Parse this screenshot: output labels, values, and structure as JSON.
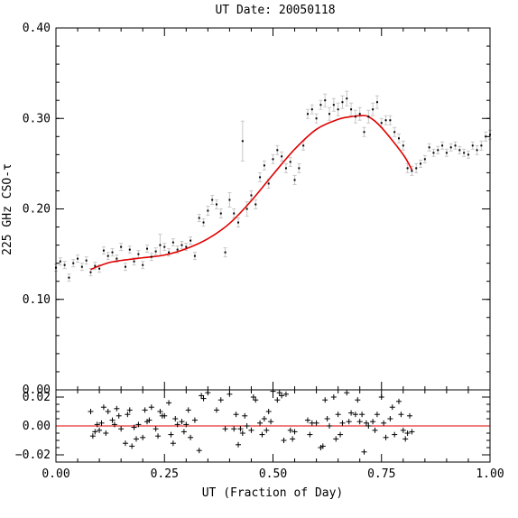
{
  "chart_data": [
    {
      "type": "scatter",
      "title": "UT Date: 20050118",
      "xlabel": "",
      "ylabel": "225 GHz CSO-τ",
      "xlim": [
        0.0,
        1.0
      ],
      "ylim": [
        0.0,
        0.4
      ],
      "yticks": [
        0.0,
        0.1,
        0.2,
        0.3,
        0.4
      ],
      "ytick_labels": [
        "0.00",
        "0.10",
        "0.20",
        "0.30",
        "0.40"
      ],
      "colors": {
        "points": "#000000",
        "error_bars": "#c8c8c8",
        "fit": "#e00000"
      },
      "series": [
        {
          "kind": "measurements",
          "x": [
            0.0,
            0.01,
            0.02,
            0.03,
            0.04,
            0.05,
            0.06,
            0.07,
            0.08,
            0.09,
            0.1,
            0.11,
            0.12,
            0.13,
            0.14,
            0.15,
            0.16,
            0.17,
            0.18,
            0.19,
            0.2,
            0.21,
            0.22,
            0.23,
            0.24,
            0.25,
            0.26,
            0.27,
            0.28,
            0.29,
            0.3,
            0.31,
            0.32,
            0.33,
            0.34,
            0.35,
            0.36,
            0.37,
            0.38,
            0.39,
            0.4,
            0.41,
            0.42,
            0.43,
            0.44,
            0.45,
            0.46,
            0.47,
            0.48,
            0.49,
            0.5,
            0.51,
            0.52,
            0.53,
            0.54,
            0.55,
            0.56,
            0.57,
            0.58,
            0.59,
            0.6,
            0.61,
            0.62,
            0.63,
            0.64,
            0.65,
            0.66,
            0.67,
            0.68,
            0.69,
            0.7,
            0.71,
            0.72,
            0.73,
            0.74,
            0.75,
            0.76,
            0.77,
            0.78,
            0.79,
            0.8,
            0.81,
            0.82,
            0.83,
            0.84,
            0.85,
            0.86,
            0.87,
            0.88,
            0.89,
            0.9,
            0.91,
            0.92,
            0.93,
            0.94,
            0.95,
            0.96,
            0.97,
            0.98,
            0.99,
            1.0
          ],
          "y": [
            0.135,
            0.142,
            0.138,
            0.124,
            0.14,
            0.145,
            0.136,
            0.143,
            0.13,
            0.137,
            0.134,
            0.154,
            0.148,
            0.152,
            0.145,
            0.158,
            0.136,
            0.155,
            0.142,
            0.15,
            0.138,
            0.156,
            0.147,
            0.153,
            0.16,
            0.158,
            0.152,
            0.163,
            0.155,
            0.16,
            0.158,
            0.165,
            0.148,
            0.19,
            0.185,
            0.198,
            0.21,
            0.205,
            0.195,
            0.152,
            0.21,
            0.195,
            0.185,
            0.275,
            0.2,
            0.215,
            0.205,
            0.235,
            0.248,
            0.228,
            0.255,
            0.265,
            0.258,
            0.245,
            0.252,
            0.232,
            0.245,
            0.27,
            0.305,
            0.31,
            0.3,
            0.315,
            0.32,
            0.305,
            0.315,
            0.31,
            0.318,
            0.322,
            0.31,
            0.302,
            0.305,
            0.285,
            0.302,
            0.31,
            0.318,
            0.295,
            0.298,
            0.298,
            0.285,
            0.278,
            0.27,
            0.245,
            0.242,
            0.245,
            0.25,
            0.255,
            0.268,
            0.262,
            0.265,
            0.27,
            0.262,
            0.268,
            0.27,
            0.265,
            0.262,
            0.26,
            0.27,
            0.265,
            0.27,
            0.28,
            0.282
          ],
          "error": [
            0.004,
            0.004,
            0.004,
            0.004,
            0.004,
            0.004,
            0.004,
            0.004,
            0.004,
            0.004,
            0.004,
            0.004,
            0.004,
            0.004,
            0.004,
            0.004,
            0.004,
            0.004,
            0.004,
            0.004,
            0.004,
            0.004,
            0.004,
            0.004,
            0.012,
            0.004,
            0.004,
            0.004,
            0.004,
            0.004,
            0.004,
            0.004,
            0.004,
            0.004,
            0.004,
            0.005,
            0.005,
            0.005,
            0.005,
            0.005,
            0.008,
            0.005,
            0.005,
            0.022,
            0.008,
            0.005,
            0.005,
            0.005,
            0.005,
            0.005,
            0.005,
            0.005,
            0.005,
            0.005,
            0.005,
            0.005,
            0.005,
            0.005,
            0.005,
            0.005,
            0.005,
            0.005,
            0.007,
            0.007,
            0.007,
            0.007,
            0.007,
            0.008,
            0.007,
            0.007,
            0.007,
            0.005,
            0.007,
            0.007,
            0.007,
            0.005,
            0.005,
            0.005,
            0.005,
            0.005,
            0.005,
            0.005,
            0.005,
            0.005,
            0.004,
            0.004,
            0.004,
            0.004,
            0.004,
            0.004,
            0.004,
            0.004,
            0.004,
            0.004,
            0.004,
            0.004,
            0.004,
            0.005,
            0.005,
            0.005,
            0.005
          ]
        },
        {
          "kind": "fit",
          "x": [
            0.08,
            0.1,
            0.125,
            0.15,
            0.2,
            0.25,
            0.3,
            0.35,
            0.4,
            0.45,
            0.5,
            0.55,
            0.6,
            0.65,
            0.68,
            0.7,
            0.72,
            0.75,
            0.8,
            0.82
          ],
          "y": [
            0.133,
            0.137,
            0.141,
            0.143,
            0.146,
            0.149,
            0.156,
            0.167,
            0.184,
            0.209,
            0.238,
            0.266,
            0.288,
            0.299,
            0.302,
            0.303,
            0.302,
            0.29,
            0.26,
            0.243
          ]
        }
      ]
    },
    {
      "type": "scatter",
      "title": "",
      "xlabel": "UT (Fraction of Day)",
      "ylabel": "",
      "xlim": [
        0.0,
        1.0
      ],
      "ylim": [
        -0.025,
        0.025
      ],
      "xticks": [
        0.0,
        0.25,
        0.5,
        0.75,
        1.0
      ],
      "xtick_labels": [
        "0.00",
        "0.25",
        "0.50",
        "0.75",
        "1.00"
      ],
      "yticks": [
        -0.02,
        0.0,
        0.02
      ],
      "ytick_labels": [
        "−0.02",
        "0.00",
        "0.02"
      ],
      "colors": {
        "points": "#000000",
        "zero_line": "#e00000"
      },
      "series": [
        {
          "kind": "residuals",
          "x": [
            0.08,
            0.085,
            0.09,
            0.095,
            0.1,
            0.105,
            0.11,
            0.115,
            0.12,
            0.13,
            0.135,
            0.14,
            0.145,
            0.15,
            0.16,
            0.165,
            0.17,
            0.175,
            0.18,
            0.185,
            0.19,
            0.2,
            0.205,
            0.21,
            0.215,
            0.22,
            0.23,
            0.235,
            0.24,
            0.245,
            0.25,
            0.26,
            0.265,
            0.27,
            0.275,
            0.28,
            0.29,
            0.295,
            0.3,
            0.305,
            0.31,
            0.32,
            0.33,
            0.335,
            0.34,
            0.35,
            0.37,
            0.38,
            0.39,
            0.4,
            0.41,
            0.415,
            0.42,
            0.425,
            0.43,
            0.435,
            0.44,
            0.45,
            0.455,
            0.46,
            0.47,
            0.475,
            0.48,
            0.485,
            0.49,
            0.495,
            0.5,
            0.51,
            0.515,
            0.52,
            0.525,
            0.53,
            0.54,
            0.545,
            0.55,
            0.58,
            0.585,
            0.59,
            0.6,
            0.61,
            0.615,
            0.62,
            0.625,
            0.63,
            0.64,
            0.645,
            0.65,
            0.655,
            0.66,
            0.67,
            0.675,
            0.68,
            0.69,
            0.695,
            0.7,
            0.705,
            0.71,
            0.715,
            0.72,
            0.73,
            0.735,
            0.74,
            0.75,
            0.755,
            0.76,
            0.77,
            0.775,
            0.78,
            0.79,
            0.795,
            0.8,
            0.805,
            0.81,
            0.815,
            0.82
          ],
          "y": [
            0.01,
            -0.007,
            -0.004,
            0.001,
            -0.003,
            0.002,
            0.013,
            -0.005,
            0.01,
            0.004,
            0.001,
            0.012,
            0.007,
            -0.002,
            -0.012,
            0.008,
            0.011,
            -0.014,
            -0.001,
            -0.009,
            0.001,
            -0.008,
            0.011,
            0.003,
            0.004,
            0.013,
            -0.002,
            -0.007,
            0.01,
            0.007,
            0.007,
            0.016,
            -0.006,
            -0.012,
            0.005,
            0.001,
            0.003,
            -0.004,
            0.001,
            0.011,
            -0.008,
            0.004,
            -0.017,
            0.021,
            0.019,
            0.023,
            0.011,
            0.018,
            -0.002,
            0.022,
            -0.002,
            0.008,
            -0.013,
            -0.002,
            -0.005,
            0.007,
            0.0,
            -0.003,
            0.02,
            0.018,
            0.002,
            -0.006,
            0.005,
            -0.003,
            0.01,
            0.003,
            0.024,
            0.018,
            0.023,
            0.021,
            -0.01,
            0.022,
            -0.003,
            -0.009,
            -0.004,
            0.004,
            -0.006,
            0.002,
            0.002,
            -0.015,
            -0.014,
            0.018,
            0.005,
            0.0,
            0.02,
            -0.009,
            0.008,
            -0.006,
            0.002,
            0.023,
            0.003,
            0.009,
            0.008,
            0.018,
            0.003,
            0.008,
            -0.018,
            0.002,
            0.0,
            0.003,
            -0.003,
            0.008,
            0.02,
            0.002,
            -0.008,
            0.005,
            0.013,
            -0.006,
            0.017,
            0.008,
            -0.003,
            -0.009,
            -0.005,
            0.007,
            -0.004
          ]
        }
      ]
    }
  ]
}
